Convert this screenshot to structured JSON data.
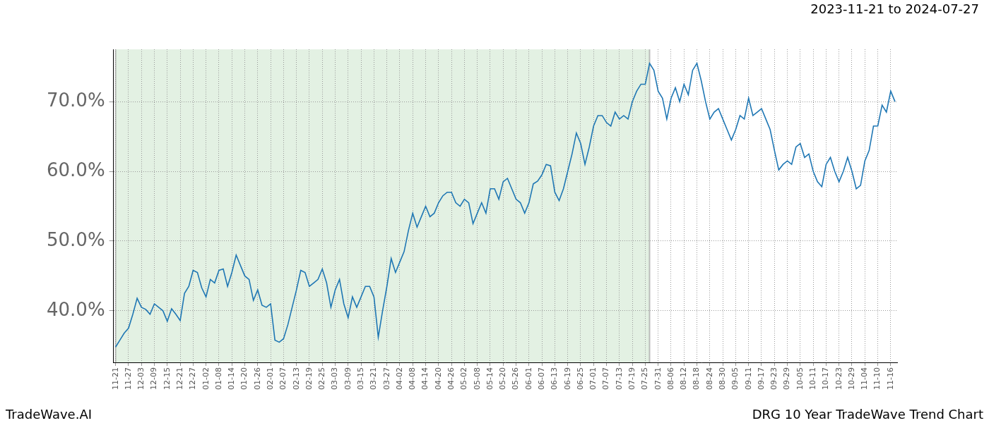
{
  "chart_data": {
    "type": "line",
    "title": "2023-11-21 to 2024-07-27",
    "annotations": [
      "TradeWave.AI",
      "DRG 10 Year TradeWave Trend Chart"
    ],
    "categories": [
      "11-21",
      null,
      null,
      "11-27",
      null,
      null,
      "12-03",
      null,
      null,
      "12-09",
      null,
      null,
      "12-15",
      null,
      null,
      "12-21",
      null,
      null,
      "12-27",
      null,
      null,
      "01-02",
      null,
      null,
      "01-08",
      null,
      null,
      "01-14",
      null,
      null,
      "01-20",
      null,
      null,
      "01-26",
      null,
      null,
      "02-01",
      null,
      null,
      "02-07",
      null,
      null,
      "02-13",
      null,
      null,
      "02-19",
      null,
      null,
      "02-25",
      null,
      null,
      "03-03",
      null,
      null,
      "03-09",
      null,
      null,
      "03-15",
      null,
      null,
      "03-21",
      null,
      null,
      "03-27",
      null,
      null,
      "04-02",
      null,
      null,
      "04-08",
      null,
      null,
      "04-14",
      null,
      null,
      "04-20",
      null,
      null,
      "04-26",
      null,
      null,
      "05-02",
      null,
      null,
      "05-08",
      null,
      null,
      "05-14",
      null,
      null,
      "05-20",
      null,
      null,
      "05-26",
      null,
      null,
      "06-01",
      null,
      null,
      "06-07",
      null,
      null,
      "06-13",
      null,
      null,
      "06-19",
      null,
      null,
      "06-25",
      null,
      null,
      "07-01",
      null,
      null,
      "07-07",
      null,
      null,
      "07-13",
      null,
      null,
      "07-19",
      null,
      null,
      "07-25",
      null,
      null,
      "07-31",
      null,
      null,
      "08-06",
      null,
      null,
      "08-12",
      null,
      null,
      "08-18",
      null,
      null,
      "08-24",
      null,
      null,
      "08-30",
      null,
      null,
      "09-05",
      null,
      null,
      "09-11",
      null,
      null,
      "09-17",
      null,
      null,
      "09-23",
      null,
      null,
      "09-29",
      null,
      null,
      "10-05",
      null,
      null,
      "10-11",
      null,
      null,
      "10-17",
      null,
      null,
      "10-23",
      null,
      null,
      "10-29",
      null,
      null,
      "11-04",
      null,
      null,
      "11-10",
      null,
      null,
      "11-16",
      null
    ],
    "values": [
      34.8,
      35.8,
      36.8,
      37.5,
      39.5,
      41.8,
      40.5,
      40.2,
      39.5,
      41,
      40.5,
      40,
      38.5,
      40.3,
      39.5,
      38.6,
      42.5,
      43.5,
      45.8,
      45.5,
      43.3,
      42,
      44.5,
      44,
      45.8,
      46,
      43.5,
      45.5,
      48,
      46.5,
      45,
      44.5,
      41.5,
      43,
      40.8,
      40.5,
      41,
      35.8,
      35.5,
      36,
      38,
      40.5,
      43,
      45.8,
      45.5,
      43.5,
      44,
      44.5,
      46,
      44,
      40.5,
      43,
      44.5,
      41,
      39,
      42,
      40.5,
      42,
      43.5,
      43.5,
      42,
      36.2,
      40,
      43.5,
      47.5,
      45.5,
      47,
      48.5,
      51.5,
      54,
      52,
      53.5,
      55,
      53.5,
      54,
      55.5,
      56.5,
      57,
      57,
      55.5,
      55,
      56,
      55.5,
      52.5,
      54,
      55.5,
      54,
      57.5,
      57.5,
      56,
      58.5,
      59,
      57.5,
      56,
      55.5,
      54,
      55.5,
      58.2,
      58.6,
      59.5,
      61,
      60.8,
      57,
      55.8,
      57.5,
      60,
      62.5,
      65.5,
      64,
      61,
      63.5,
      66.5,
      68,
      68,
      67,
      66.5,
      68.5,
      67.5,
      68,
      67.5,
      70,
      71.5,
      72.5,
      72.5,
      75.5,
      74.5,
      71.5,
      70.5,
      67.5,
      70.5,
      72,
      70,
      72.5,
      71,
      74.5,
      75.5,
      73,
      70,
      67.5,
      68.5,
      69,
      67.5,
      66,
      64.5,
      66,
      68,
      67.5,
      70.5,
      68,
      68.5,
      69,
      67.5,
      66,
      63,
      60.2,
      61,
      61.5,
      61,
      63.5,
      64,
      62,
      62.5,
      60,
      58.5,
      57.8,
      61,
      62,
      60,
      58.5,
      60,
      62,
      60,
      57.5,
      58,
      61.5,
      63,
      66.5,
      66.5,
      69.5,
      68.5,
      71.5,
      70
    ],
    "color": "#1f77b4",
    "shaded_range": [
      0,
      124
    ],
    "ylim": [
      32.6,
      77.5
    ],
    "yticks": [
      {
        "value": 40,
        "label": "40.0%"
      },
      {
        "value": 50,
        "label": "50.0%"
      },
      {
        "value": 60,
        "label": "60.0%"
      },
      {
        "value": 70,
        "label": "70.0%"
      }
    ],
    "grid": true
  }
}
